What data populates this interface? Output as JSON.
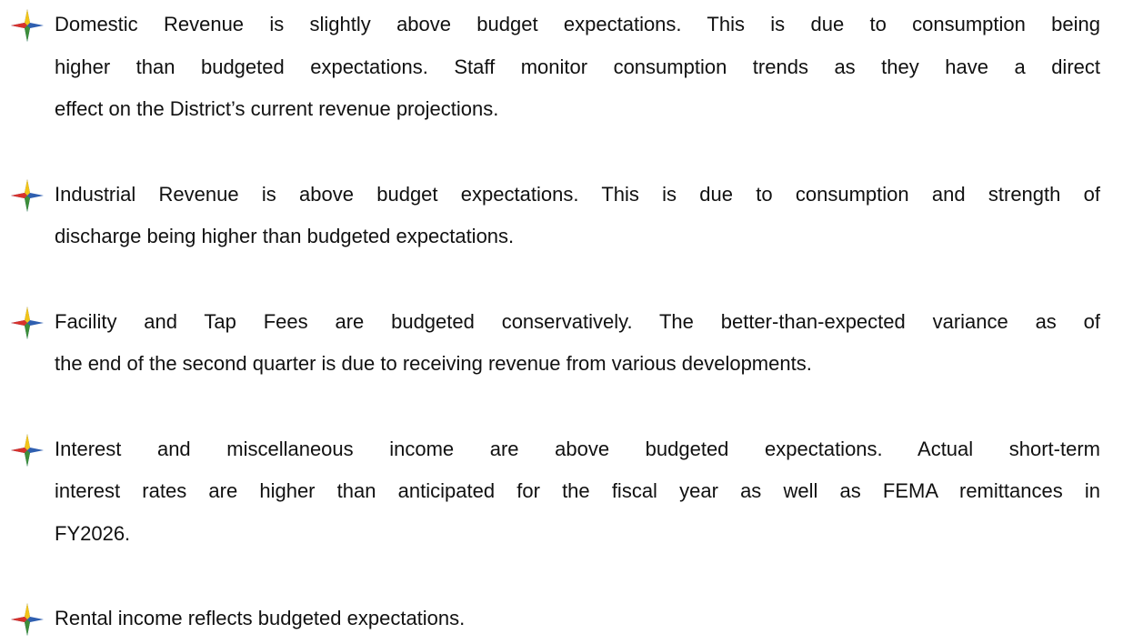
{
  "items": [
    {
      "lines": [
        "Domestic Revenue is slightly above budget expectations.  This is due to consumption being",
        "higher than budgeted expectations. Staff monitor consumption trends as they have a direct",
        "effect on the District’s current revenue projections."
      ]
    },
    {
      "lines": [
        "Industrial Revenue is above budget expectations. This is due to consumption and strength of",
        "discharge being higher than budgeted expectations."
      ]
    },
    {
      "lines": [
        "Facility and Tap Fees are budgeted conservatively. The better-than-expected variance as of",
        "the end of the second quarter is due to receiving revenue from various developments."
      ]
    },
    {
      "lines": [
        "Interest and miscellaneous income are above budgeted expectations. Actual short-term",
        "interest rates are higher than anticipated for the fiscal year as well as FEMA remittances in",
        "FY2026."
      ]
    },
    {
      "lines": [
        "Rental income reflects budgeted expectations."
      ]
    }
  ]
}
